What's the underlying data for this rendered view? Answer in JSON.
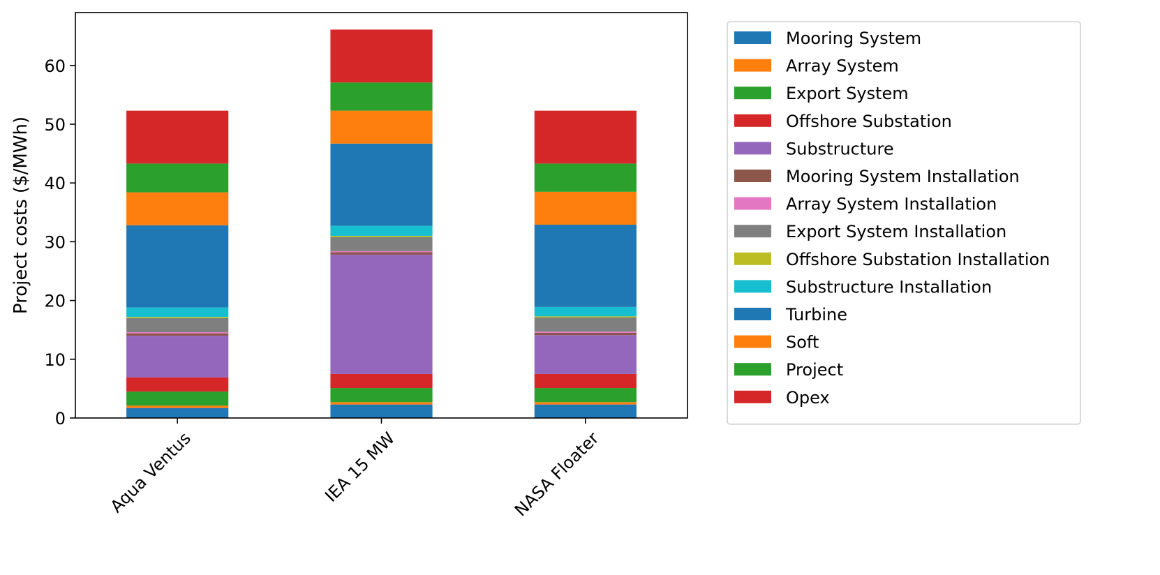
{
  "chart_data": {
    "type": "bar",
    "stacked": true,
    "categories": [
      "Aqua Ventus",
      "IEA 15 MW",
      "NASA Floater"
    ],
    "ylabel": "Project costs ($/MWh)",
    "xlabel": "",
    "title": "",
    "ylim": [
      0,
      69
    ],
    "yticks": [
      0,
      10,
      20,
      30,
      40,
      50,
      60
    ],
    "grid": false,
    "legend_position": "right",
    "series": [
      {
        "name": "Mooring System",
        "color": "#1f77b4",
        "values": [
          1.7,
          2.3,
          2.3
        ]
      },
      {
        "name": "Array System",
        "color": "#ff7f0e",
        "values": [
          0.4,
          0.4,
          0.4
        ]
      },
      {
        "name": "Export System",
        "color": "#2ca02c",
        "values": [
          2.4,
          2.4,
          2.4
        ]
      },
      {
        "name": "Offshore Substation",
        "color": "#d62728",
        "values": [
          2.4,
          2.4,
          2.4
        ]
      },
      {
        "name": "Substructure",
        "color": "#9467bd",
        "values": [
          7.1,
          20.3,
          6.6
        ]
      },
      {
        "name": "Mooring System Installation",
        "color": "#8c564b",
        "values": [
          0.4,
          0.4,
          0.4
        ]
      },
      {
        "name": "Array System Installation",
        "color": "#e377c2",
        "values": [
          0.2,
          0.2,
          0.2
        ]
      },
      {
        "name": "Export System Installation",
        "color": "#7f7f7f",
        "values": [
          2.4,
          2.4,
          2.4
        ]
      },
      {
        "name": "Offshore Substation Installation",
        "color": "#bcbd22",
        "values": [
          0.2,
          0.2,
          0.2
        ]
      },
      {
        "name": "Substructure Installation",
        "color": "#17becf",
        "values": [
          1.6,
          1.7,
          1.6
        ]
      },
      {
        "name": "Turbine",
        "color": "#1f77b4",
        "values": [
          14.0,
          14.0,
          14.0
        ]
      },
      {
        "name": "Soft",
        "color": "#ff7f0e",
        "values": [
          5.6,
          5.6,
          5.6
        ]
      },
      {
        "name": "Project",
        "color": "#2ca02c",
        "values": [
          4.9,
          4.8,
          4.8
        ]
      },
      {
        "name": "Opex",
        "color": "#d62728",
        "values": [
          9.0,
          9.0,
          9.0
        ]
      }
    ]
  }
}
